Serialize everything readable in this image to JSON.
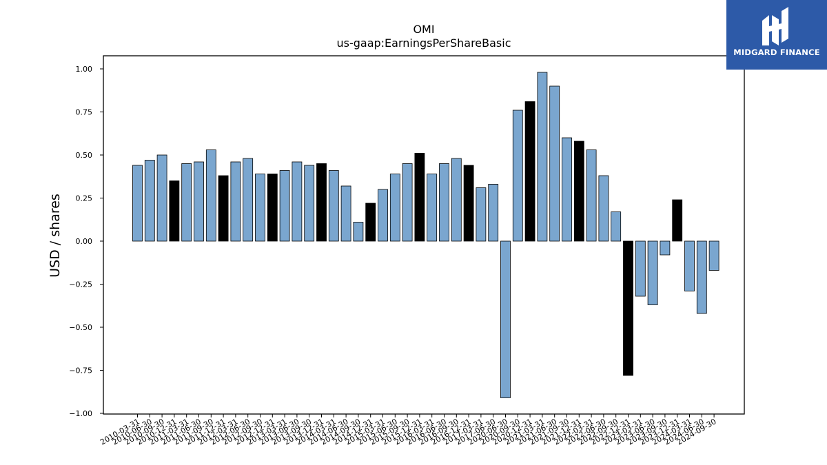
{
  "chart_data": {
    "type": "bar",
    "title": "OMI",
    "subtitle": "us-gaap:EarningsPerShareBasic",
    "ylabel": "USD / shares",
    "xlabel": "",
    "ylim": [
      -1.0,
      1.05
    ],
    "yticks": [
      "1.00",
      "0.75",
      "0.50",
      "0.25",
      "0.00",
      "−0.25",
      "−0.50",
      "−0.75",
      "−1.00"
    ],
    "ytick_values": [
      1.0,
      0.75,
      0.5,
      0.25,
      0.0,
      -0.25,
      -0.5,
      -0.75,
      -1.0
    ],
    "grid": false,
    "colors": {
      "quarter": "#7aa6cf",
      "annual": "#000000",
      "edge": "#000000"
    },
    "categories": [
      "2010-03-31",
      "2010-06-30",
      "2010-09-30",
      "2010-12-31",
      "2011-03-31",
      "2011-06-30",
      "2011-09-30",
      "2011-12-31",
      "2012-03-31",
      "2012-06-30",
      "2012-09-30",
      "2012-12-31",
      "2013-03-31",
      "2013-06-30",
      "2013-09-30",
      "2013-12-31",
      "2014-03-31",
      "2014-06-30",
      "2014-09-30",
      "2014-12-31",
      "2015-03-31",
      "2015-06-30",
      "2015-09-30",
      "2015-12-31",
      "2016-03-31",
      "2016-06-30",
      "2016-09-30",
      "2016-12-31",
      "2017-03-31",
      "2017-06-30",
      "2020-06-30",
      "2020-09-30",
      "2020-12-31",
      "2021-03-31",
      "2021-06-30",
      "2021-09-30",
      "2021-12-31",
      "2022-03-31",
      "2022-06-30",
      "2022-09-30",
      "2022-12-31",
      "2023-03-31",
      "2023-06-30",
      "2023-09-30",
      "2023-12-31",
      "2024-03-31",
      "2024-06-30",
      "2024-09-30"
    ],
    "values": [
      0.44,
      0.47,
      0.5,
      0.35,
      0.45,
      0.46,
      0.53,
      0.38,
      0.46,
      0.48,
      0.39,
      0.39,
      0.41,
      0.46,
      0.44,
      0.45,
      0.41,
      0.32,
      0.11,
      0.22,
      0.3,
      0.39,
      0.45,
      0.51,
      0.39,
      0.45,
      0.48,
      0.44,
      0.31,
      0.33,
      -0.91,
      0.76,
      0.81,
      0.98,
      0.9,
      0.6,
      0.58,
      0.53,
      0.38,
      0.17,
      -0.78,
      -0.32,
      -0.37,
      -0.08,
      0.24,
      -0.29,
      -0.42,
      -0.17
    ],
    "annual_flags": [
      0,
      0,
      0,
      1,
      0,
      0,
      0,
      1,
      0,
      0,
      0,
      1,
      0,
      0,
      0,
      1,
      0,
      0,
      0,
      1,
      0,
      0,
      0,
      1,
      0,
      0,
      0,
      1,
      0,
      0,
      0,
      0,
      1,
      0,
      0,
      0,
      1,
      0,
      0,
      0,
      1,
      0,
      0,
      0,
      1,
      0,
      0,
      0
    ]
  },
  "logo": {
    "text": "MIDGARD FINANCE",
    "icon": "midgard-logo-icon"
  }
}
